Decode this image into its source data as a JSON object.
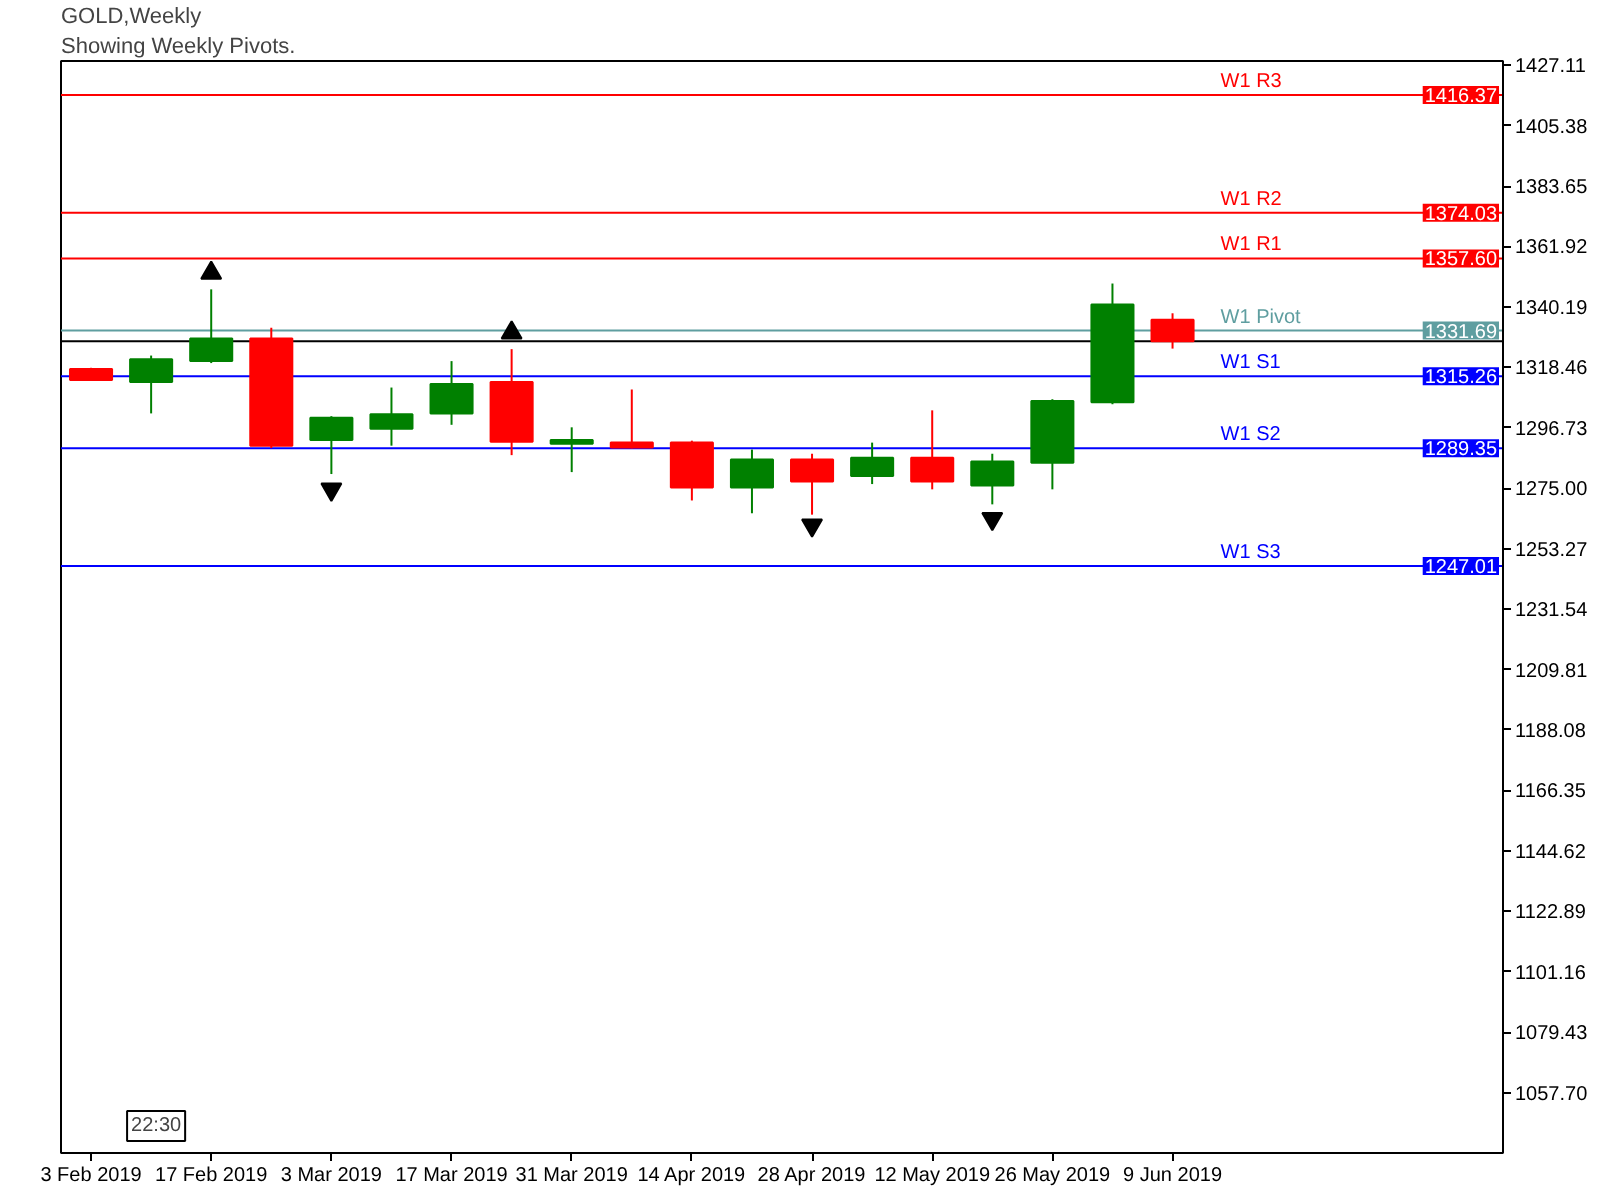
{
  "chart_data": {
    "type": "candlestick",
    "title": "GOLD,Weekly",
    "subtitle": "Showing Weekly Pivots.",
    "categories": [
      "3 Feb 2019",
      null,
      "17 Feb 2019",
      null,
      "3 Mar 2019",
      null,
      "17 Mar 2019",
      null,
      "31 Mar 2019",
      null,
      "14 Apr 2019",
      null,
      "28 Apr 2019",
      null,
      "12 May 2019",
      null,
      "26 May 2019",
      null,
      "9 Jun 2019",
      null,
      null,
      null,
      null,
      null
    ],
    "ohlc": [
      [
        1317.9,
        1318.3,
        1313.6,
        1313.9
      ],
      [
        1313.2,
        1322.7,
        1301.9,
        1321.4
      ],
      [
        1320.7,
        1346.5,
        1320.0,
        1328.8
      ],
      [
        1328.8,
        1332.7,
        1289.4,
        1290.3
      ],
      [
        1292.3,
        1300.9,
        1280.1,
        1300.3
      ],
      [
        1296.4,
        1311.2,
        1290.3,
        1301.6
      ],
      [
        1301.9,
        1320.7,
        1297.8,
        1312.5
      ],
      [
        1313.2,
        1325.0,
        1286.9,
        1291.7
      ],
      [
        1291.0,
        1296.9,
        1280.8,
        1292.3
      ],
      [
        1291.4,
        1310.5,
        1289.3,
        1289.6
      ],
      [
        1291.4,
        1292.1,
        1270.6,
        1275.3
      ],
      [
        1275.3,
        1288.9,
        1266.0,
        1285.3
      ],
      [
        1285.3,
        1287.4,
        1265.5,
        1277.4
      ],
      [
        1279.4,
        1291.4,
        1276.5,
        1286.0
      ],
      [
        1286.0,
        1303.0,
        1274.6,
        1277.4
      ],
      [
        1276.0,
        1287.4,
        1269.2,
        1284.6
      ],
      [
        1284.2,
        1307.0,
        1274.6,
        1306.4
      ],
      [
        1305.9,
        1348.6,
        1305.2,
        1341.1
      ],
      [
        1335.6,
        1337.9,
        1325.2,
        1327.8
      ],
      null,
      null,
      null,
      null,
      null
    ],
    "colors": [
      "#ff0000",
      "#008000",
      "#008000",
      "#ff0000",
      "#008000",
      "#008000",
      "#008000",
      "#ff0000",
      "#008000",
      "#ff0000",
      "#ff0000",
      "#008000",
      "#ff0000",
      "#008000",
      "#ff0000",
      "#008000",
      "#008000",
      "#008000",
      "#ff0000",
      null,
      null,
      null,
      null,
      null
    ],
    "series": [
      {
        "type": "scatter",
        "marker": "triangle",
        "color": "#000000",
        "values": [
          null,
          null,
          1352.4,
          null,
          null,
          null,
          null,
          1330.9,
          null,
          null,
          null,
          null,
          null,
          null,
          null,
          null,
          null,
          null,
          null,
          null,
          null,
          null,
          null,
          null
        ]
      },
      {
        "type": "scatter",
        "marker": "triangle",
        "color": "#000000",
        "values": [
          null,
          null,
          null,
          null,
          1274.6,
          null,
          null,
          null,
          null,
          null,
          null,
          null,
          1261.7,
          null,
          null,
          1264.0,
          null,
          null,
          null,
          null,
          null,
          null,
          null,
          null
        ]
      }
    ],
    "ylim": [
      1036.0,
      1428.6
    ],
    "yticks": [
      1427.11,
      1405.38,
      1383.65,
      1361.92,
      1340.19,
      1318.46,
      1296.73,
      {
        "value": 1275.0,
        "label": "1275.00"
      },
      1253.27,
      1231.54,
      1209.81,
      1188.08,
      1166.35,
      1144.62,
      1122.89,
      1101.16,
      1079.43,
      {
        "value": 1057.7,
        "label": "1057.70"
      }
    ],
    "ref_lines": [
      {
        "axis": "y",
        "value": 1416.37,
        "label": "W1 R3",
        "color": "#ff0000"
      },
      {
        "axis": "y",
        "value": 1374.03,
        "label": "W1 R2",
        "color": "#ff0000"
      },
      {
        "axis": "y",
        "value": 1357.6,
        "label": "W1 R1",
        "color": "#ff0000"
      },
      {
        "axis": "y",
        "value": 1331.69,
        "label": "W1 Pivot",
        "color": "#5f9ea0"
      },
      {
        "axis": "y",
        "value": 1327.8,
        "color": "#000000"
      },
      {
        "axis": "y",
        "value": 1315.26,
        "label": "W1 S1",
        "color": "#0000ff"
      },
      {
        "axis": "y",
        "value": 1289.35,
        "label": "W1 S2",
        "color": "#0000ff"
      },
      {
        "axis": "y",
        "value": 1247.01,
        "label": "W1 S3",
        "color": "#0000ff"
      }
    ],
    "annotations": [
      {
        "text": "1416.37",
        "y": 1416.37
      },
      {
        "text": "1374.03",
        "y": 1374.03
      },
      {
        "text": "1357.60",
        "y": 1357.6
      },
      {
        "text": "1331.69",
        "y": 1331.69
      },
      {
        "text": "1315.26",
        "y": 1315.26
      },
      {
        "text": "1289.35",
        "y": 1289.35
      },
      {
        "text": "1247.01",
        "y": 1247.01
      },
      "22:30"
    ],
    "grid": false
  }
}
